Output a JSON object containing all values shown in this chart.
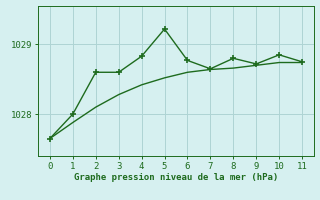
{
  "line1_x": [
    0,
    1,
    2,
    3,
    4,
    5,
    6,
    7,
    8,
    9,
    10,
    11
  ],
  "line1_y": [
    1027.65,
    1028.0,
    1028.6,
    1028.6,
    1028.83,
    1029.22,
    1028.77,
    1028.65,
    1028.8,
    1028.72,
    1028.85,
    1028.75
  ],
  "line2_x": [
    0,
    1,
    2,
    3,
    4,
    5,
    6,
    7,
    8,
    9,
    10,
    11
  ],
  "line2_y": [
    1027.65,
    1027.88,
    1028.1,
    1028.28,
    1028.42,
    1028.52,
    1028.6,
    1028.64,
    1028.66,
    1028.7,
    1028.74,
    1028.74
  ],
  "line_color": "#1e6b1e",
  "marker_color": "#1e6b1e",
  "bg_color": "#d6f0f0",
  "grid_color": "#aed4d4",
  "xlabel": "Graphe pression niveau de la mer (hPa)",
  "xlabel_color": "#1e6b1e",
  "tick_color": "#1e6b1e",
  "yticks": [
    1028,
    1029
  ],
  "xticks": [
    0,
    1,
    2,
    3,
    4,
    5,
    6,
    7,
    8,
    9,
    10,
    11
  ],
  "ylim": [
    1027.4,
    1029.55
  ],
  "xlim": [
    -0.5,
    11.5
  ]
}
